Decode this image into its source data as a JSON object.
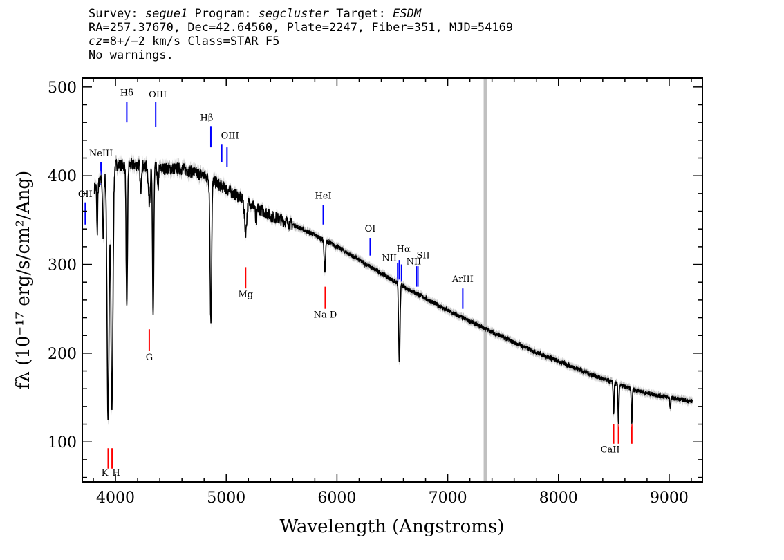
{
  "header": {
    "line1": {
      "survey_label": "Survey: ",
      "survey": "segue1",
      "program_label": " Program: ",
      "program": "segcluster",
      "target_label": " Target: ",
      "target": "ESDM"
    },
    "line2": "RA=257.37670, Dec=42.64560, Plate=2247, Fiber=351, MJD=54169",
    "line3": {
      "cz_var": "cz",
      "cz_value": "=8+/−2",
      "cz_rest": " km/s Class=STAR F5"
    },
    "line4": "No warnings."
  },
  "chart_data": {
    "type": "line",
    "xlabel": "Wavelength (Angstroms)",
    "ylabel": "fλ (10⁻¹⁷ erg/s/cm²/Ang)",
    "xlim": [
      3700,
      9300
    ],
    "ylim": [
      55,
      510
    ],
    "xticks": [
      4000,
      5000,
      6000,
      7000,
      8000,
      9000
    ],
    "yticks": [
      100,
      200,
      300,
      400,
      500
    ],
    "grid": false,
    "colors": {
      "spectrum": "#000000",
      "error_band": "#bfbfbf",
      "emission_lines": "#0000ff",
      "absorption_lines": "#ff0000",
      "sky_band": "#c0c0c0"
    },
    "vertical_band_x": 7340,
    "continuum": [
      [
        3800,
        385
      ],
      [
        4000,
        412
      ],
      [
        4200,
        412
      ],
      [
        4400,
        408
      ],
      [
        4600,
        408
      ],
      [
        4800,
        400
      ],
      [
        5000,
        385
      ],
      [
        5200,
        370
      ],
      [
        5400,
        355
      ],
      [
        5600,
        345
      ],
      [
        5800,
        333
      ],
      [
        6000,
        320
      ],
      [
        6200,
        305
      ],
      [
        6400,
        290
      ],
      [
        6600,
        275
      ],
      [
        6800,
        262
      ],
      [
        7000,
        248
      ],
      [
        7200,
        236
      ],
      [
        7400,
        224
      ],
      [
        7600,
        212
      ],
      [
        7800,
        201
      ],
      [
        8000,
        191
      ],
      [
        8200,
        181
      ],
      [
        8400,
        171
      ],
      [
        8600,
        162
      ],
      [
        8800,
        155
      ],
      [
        9000,
        150
      ],
      [
        9200,
        146
      ]
    ],
    "absorption_features": [
      [
        3835,
        55,
        4
      ],
      [
        3889,
        70,
        5
      ],
      [
        3933,
        280,
        9
      ],
      [
        3968,
        270,
        9
      ],
      [
        4102,
        165,
        6
      ],
      [
        4227,
        30,
        5
      ],
      [
        4305,
        40,
        8
      ],
      [
        4340,
        165,
        6
      ],
      [
        4383,
        25,
        5
      ],
      [
        4861,
        160,
        7
      ],
      [
        5175,
        35,
        10
      ],
      [
        5270,
        20,
        6
      ],
      [
        5890,
        35,
        6
      ],
      [
        6563,
        90,
        6
      ],
      [
        8498,
        35,
        4
      ],
      [
        8542,
        45,
        4
      ],
      [
        8662,
        40,
        4
      ],
      [
        9010,
        12,
        4
      ]
    ],
    "line_markers": [
      {
        "label": "OII",
        "x": 3727,
        "color": "blue",
        "y0": 345,
        "y1": 370,
        "ly": 376
      },
      {
        "label": "NeIII",
        "x": 3869,
        "color": "blue",
        "y0": 390,
        "y1": 415,
        "ly": 422
      },
      {
        "label": "Hδ",
        "x": 4102,
        "color": "blue",
        "y0": 460,
        "y1": 483,
        "ly": 490
      },
      {
        "label": "OIII",
        "x": 4363,
        "color": "blue",
        "y0": 455,
        "y1": 483,
        "ly": 488,
        "dx": 3
      },
      {
        "label": "Hβ",
        "x": 4861,
        "color": "blue",
        "y0": 432,
        "y1": 456,
        "ly": 462,
        "dx": -6
      },
      {
        "label": "OIII",
        "x": 4959,
        "color": "blue",
        "y0": 415,
        "y1": 435,
        "ly": 442,
        "dx": 12
      },
      {
        "label": "",
        "x": 5007,
        "color": "blue",
        "y0": 410,
        "y1": 432
      },
      {
        "label": "HeI",
        "x": 5876,
        "color": "blue",
        "y0": 345,
        "y1": 367,
        "ly": 374
      },
      {
        "label": "OI",
        "x": 6300,
        "color": "blue",
        "y0": 310,
        "y1": 330,
        "ly": 337
      },
      {
        "label": "NII",
        "x": 6548,
        "color": "blue",
        "y0": 280,
        "y1": 302,
        "ly": 304,
        "dx": -12
      },
      {
        "label": "Hα",
        "x": 6563,
        "color": "blue",
        "y0": 283,
        "y1": 305,
        "ly": 314,
        "dx": 6
      },
      {
        "label": "NII",
        "x": 6583,
        "color": "blue",
        "y0": 280,
        "y1": 300
      },
      {
        "label": "SII",
        "x": 6716,
        "color": "blue",
        "y0": 275,
        "y1": 298,
        "ly": 307,
        "dx": 10
      },
      {
        "label": "NII",
        "x": 6731,
        "color": "blue",
        "y0": 275,
        "y1": 298,
        "ly": 300,
        "dx": -6
      },
      {
        "label": "ArIII",
        "x": 7136,
        "color": "blue",
        "y0": 250,
        "y1": 273,
        "ly": 280
      },
      {
        "label": "Mg",
        "x": 5175,
        "color": "red",
        "y0": 273,
        "y1": 297,
        "ly": 263
      },
      {
        "label": "G",
        "x": 4305,
        "color": "red",
        "y0": 203,
        "y1": 227,
        "ly": 192
      },
      {
        "label": "Na D",
        "x": 5894,
        "color": "red",
        "y0": 250,
        "y1": 275,
        "ly": 240
      },
      {
        "label": "K",
        "x": 3934,
        "color": "red",
        "y0": 70,
        "y1": 93,
        "ly": 62,
        "dx": -5
      },
      {
        "label": "H",
        "x": 3969,
        "color": "red",
        "y0": 70,
        "y1": 93,
        "ly": 62,
        "dx": 6
      },
      {
        "label": "",
        "x": 8498,
        "color": "red",
        "y0": 98,
        "y1": 120
      },
      {
        "label": "CaII",
        "x": 8542,
        "color": "red",
        "y0": 98,
        "y1": 120,
        "ly": 88,
        "dx": -12
      },
      {
        "label": "",
        "x": 8662,
        "color": "red",
        "y0": 98,
        "y1": 120
      }
    ]
  }
}
